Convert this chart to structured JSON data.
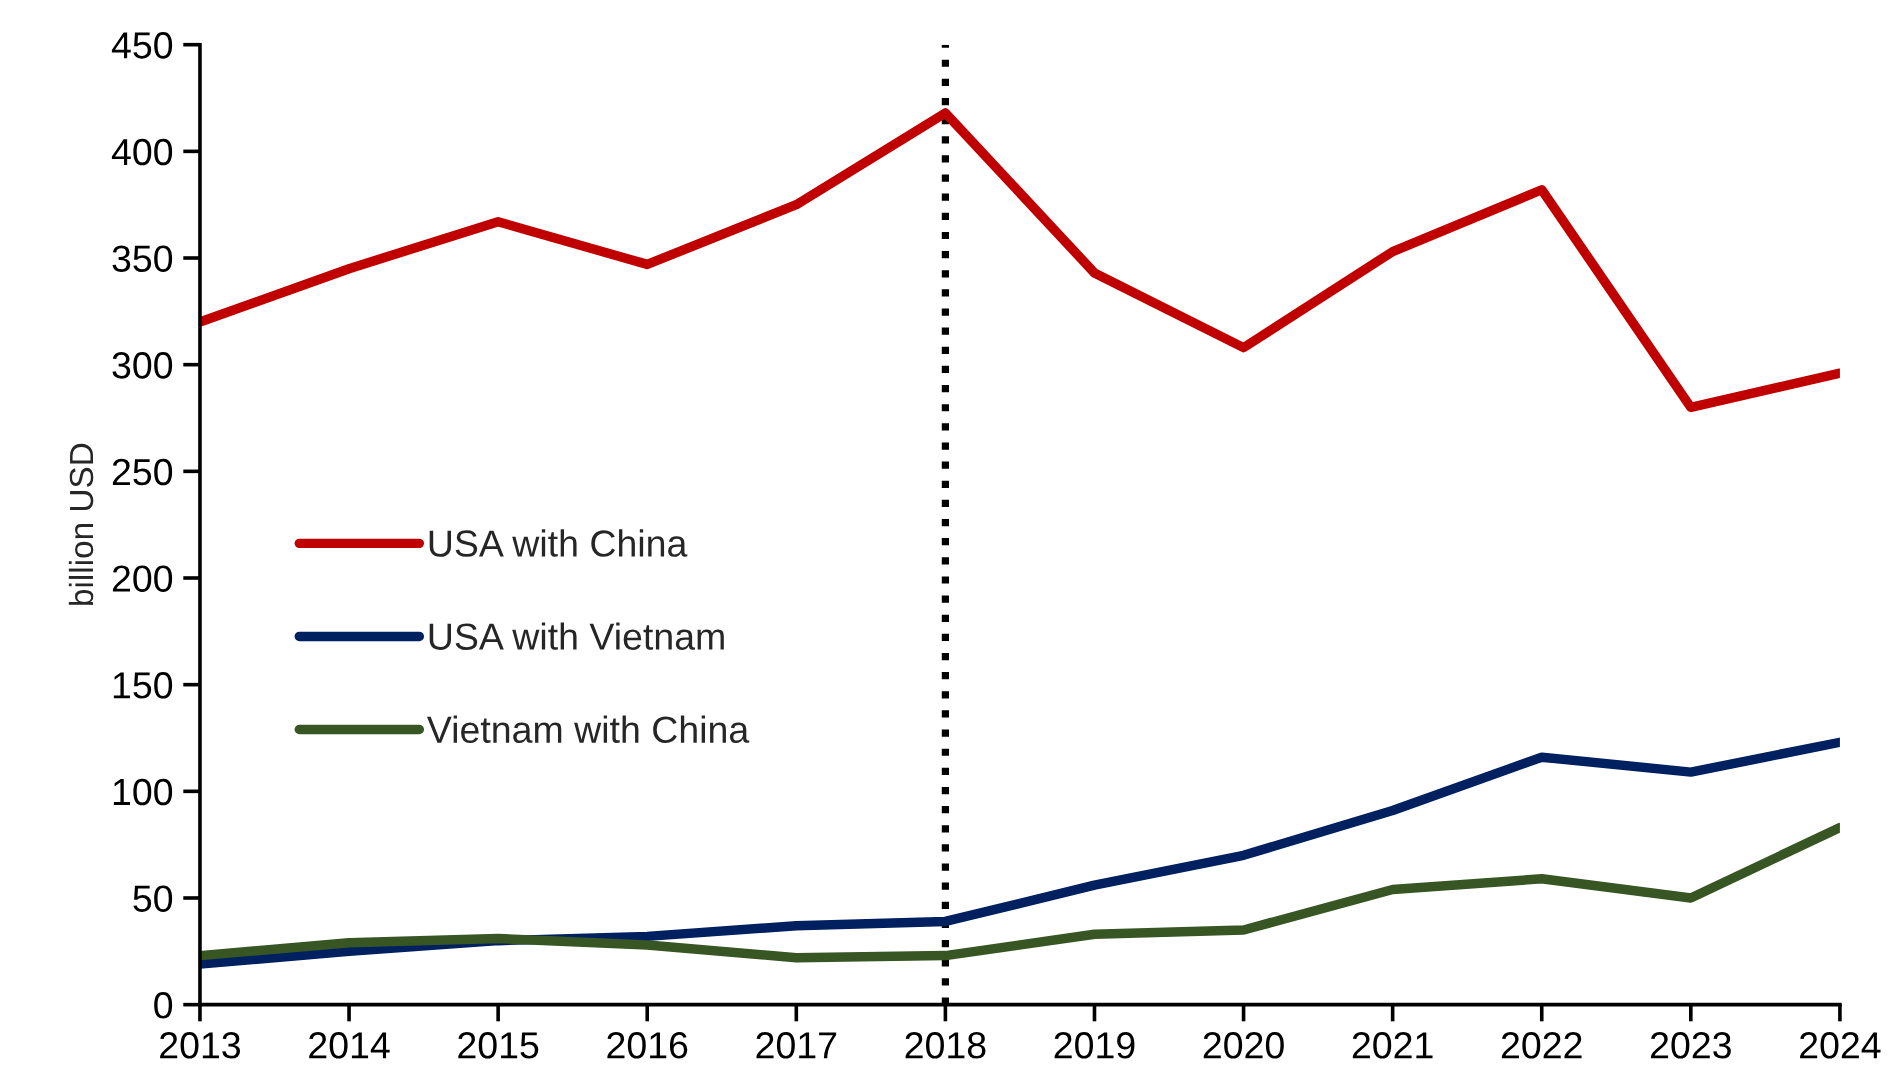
{
  "chart_data": {
    "type": "line",
    "ylabel": "billion USD",
    "x": [
      2013,
      2014,
      2015,
      2016,
      2017,
      2018,
      2019,
      2020,
      2021,
      2022,
      2023,
      2024
    ],
    "xlim": [
      2013,
      2024
    ],
    "xticks": [
      2013,
      2014,
      2015,
      2016,
      2017,
      2018,
      2019,
      2020,
      2021,
      2022,
      2023,
      2024
    ],
    "ylim": [
      0,
      450
    ],
    "yticks": [
      0,
      50,
      100,
      150,
      200,
      250,
      300,
      350,
      400,
      450
    ],
    "series": [
      {
        "name": "USA with China",
        "color": "#c00000",
        "values": [
          320,
          345,
          367,
          347,
          375,
          418,
          343,
          308,
          353,
          382,
          280,
          296
        ]
      },
      {
        "name": "USA with Vietnam",
        "color": "#002060",
        "values": [
          19,
          25,
          30,
          32,
          37,
          39,
          56,
          70,
          91,
          116,
          109,
          123
        ]
      },
      {
        "name": "Vietnam with China",
        "color": "#375623",
        "values": [
          23,
          29,
          31,
          28,
          22,
          23,
          33,
          35,
          54,
          59,
          50,
          83
        ]
      }
    ],
    "ref_lines": [
      {
        "axis": "x",
        "value": 2018,
        "color": "#000000",
        "line_style": "dotted"
      }
    ],
    "legend": "center left",
    "grid": false,
    "marker": "none",
    "line_style": "solid"
  }
}
